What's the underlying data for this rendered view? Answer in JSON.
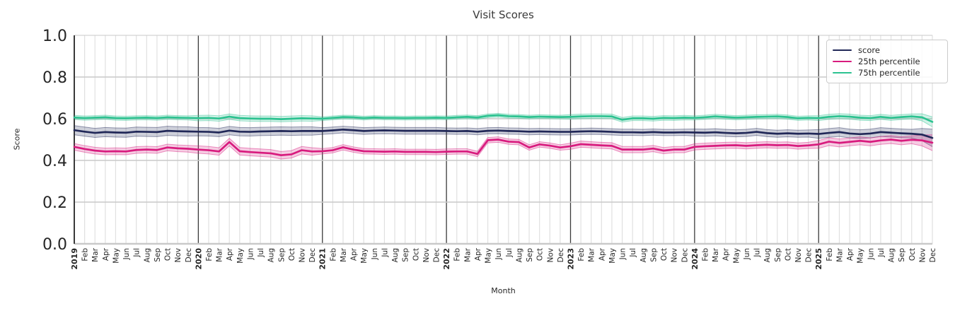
{
  "chart": {
    "title": "Visit Scores",
    "xlabel": "Month",
    "ylabel": "Score"
  },
  "chart_data": {
    "type": "line",
    "title": "Visit Scores",
    "xlabel": "Month",
    "ylabel": "Score",
    "ylim": [
      0.0,
      1.0
    ],
    "yticks": [
      0.0,
      0.2,
      0.4,
      0.6,
      0.8,
      1.0
    ],
    "grid": true,
    "legend_position": "upper right",
    "colors": {
      "grid_minor": "#e0e0e0",
      "grid_major_h": "#c9c9c9",
      "year_line": "#3b3b3b",
      "axis_spine": "#2a2a2a",
      "tick_text": "#262626"
    },
    "x_labels": [
      "2019",
      "Feb",
      "Mar",
      "Apr",
      "May",
      "Jun",
      "Jul",
      "Aug",
      "Sep",
      "Oct",
      "Nov",
      "Dec",
      "2020",
      "Feb",
      "Mar",
      "Apr",
      "May",
      "Jun",
      "Jul",
      "Aug",
      "Sep",
      "Oct",
      "Nov",
      "Dec",
      "2021",
      "Feb",
      "Mar",
      "Apr",
      "May",
      "Jun",
      "Jul",
      "Aug",
      "Sep",
      "Oct",
      "Nov",
      "Dec",
      "2022",
      "Feb",
      "Mar",
      "Apr",
      "May",
      "Jun",
      "Jul",
      "Aug",
      "Sep",
      "Oct",
      "Nov",
      "Dec",
      "2023",
      "Feb",
      "Mar",
      "Apr",
      "May",
      "Jun",
      "Jul",
      "Aug",
      "Sep",
      "Oct",
      "Nov",
      "Dec",
      "2024",
      "Feb",
      "Mar",
      "Apr",
      "May",
      "Jun",
      "Jul",
      "Aug",
      "Sep",
      "Oct",
      "Nov",
      "Dec",
      "2025",
      "Feb",
      "Mar",
      "Apr",
      "May",
      "Jun",
      "Jul",
      "Aug",
      "Sep",
      "Oct",
      "Nov",
      "Dec"
    ],
    "series": [
      {
        "key": "score",
        "name": "score",
        "color": "#212858",
        "band_by_year": [
          0.022,
          0.02,
          0.016,
          0.015,
          0.015,
          0.017,
          0.021
        ],
        "values": [
          0.545,
          0.538,
          0.532,
          0.536,
          0.534,
          0.533,
          0.538,
          0.537,
          0.536,
          0.542,
          0.54,
          0.539,
          0.538,
          0.537,
          0.534,
          0.543,
          0.538,
          0.537,
          0.539,
          0.54,
          0.541,
          0.54,
          0.541,
          0.541,
          0.541,
          0.544,
          0.548,
          0.545,
          0.541,
          0.543,
          0.544,
          0.543,
          0.542,
          0.542,
          0.542,
          0.542,
          0.541,
          0.54,
          0.541,
          0.538,
          0.542,
          0.543,
          0.541,
          0.54,
          0.538,
          0.539,
          0.538,
          0.537,
          0.537,
          0.539,
          0.54,
          0.539,
          0.537,
          0.535,
          0.535,
          0.534,
          0.536,
          0.534,
          0.534,
          0.535,
          0.534,
          0.533,
          0.535,
          0.532,
          0.53,
          0.532,
          0.537,
          0.531,
          0.528,
          0.53,
          0.528,
          0.529,
          0.527,
          0.532,
          0.536,
          0.529,
          0.526,
          0.529,
          0.536,
          0.533,
          0.53,
          0.528,
          0.524,
          0.508
        ]
      },
      {
        "key": "p25",
        "name": "25th percentile",
        "color": "#d81b7e",
        "band_by_year": [
          0.016,
          0.018,
          0.013,
          0.013,
          0.015,
          0.015,
          0.019
        ],
        "values": [
          0.465,
          0.455,
          0.447,
          0.443,
          0.444,
          0.443,
          0.45,
          0.452,
          0.45,
          0.462,
          0.458,
          0.456,
          0.452,
          0.449,
          0.443,
          0.488,
          0.444,
          0.44,
          0.437,
          0.434,
          0.425,
          0.429,
          0.449,
          0.443,
          0.444,
          0.449,
          0.463,
          0.452,
          0.444,
          0.443,
          0.442,
          0.443,
          0.441,
          0.441,
          0.441,
          0.44,
          0.442,
          0.443,
          0.443,
          0.431,
          0.497,
          0.5,
          0.49,
          0.488,
          0.462,
          0.477,
          0.471,
          0.462,
          0.468,
          0.478,
          0.475,
          0.472,
          0.47,
          0.452,
          0.452,
          0.452,
          0.457,
          0.447,
          0.452,
          0.452,
          0.465,
          0.468,
          0.47,
          0.472,
          0.473,
          0.47,
          0.473,
          0.475,
          0.473,
          0.474,
          0.469,
          0.472,
          0.477,
          0.49,
          0.484,
          0.489,
          0.494,
          0.489,
          0.496,
          0.5,
          0.494,
          0.499,
          0.496,
          0.485
        ]
      },
      {
        "key": "p75",
        "name": "75th percentile",
        "color": "#2cc290",
        "band_by_year": [
          0.01,
          0.013,
          0.009,
          0.009,
          0.011,
          0.01,
          0.012
        ],
        "values": [
          0.606,
          0.603,
          0.605,
          0.607,
          0.603,
          0.602,
          0.604,
          0.605,
          0.603,
          0.607,
          0.605,
          0.604,
          0.603,
          0.604,
          0.601,
          0.61,
          0.603,
          0.601,
          0.6,
          0.6,
          0.598,
          0.6,
          0.602,
          0.601,
          0.6,
          0.604,
          0.608,
          0.607,
          0.603,
          0.606,
          0.604,
          0.604,
          0.603,
          0.604,
          0.604,
          0.605,
          0.604,
          0.607,
          0.609,
          0.606,
          0.614,
          0.617,
          0.612,
          0.611,
          0.608,
          0.61,
          0.609,
          0.608,
          0.609,
          0.611,
          0.612,
          0.612,
          0.611,
          0.595,
          0.602,
          0.602,
          0.6,
          0.604,
          0.603,
          0.605,
          0.604,
          0.607,
          0.611,
          0.608,
          0.605,
          0.607,
          0.609,
          0.61,
          0.611,
          0.608,
          0.602,
          0.604,
          0.603,
          0.609,
          0.612,
          0.61,
          0.605,
          0.603,
          0.609,
          0.604,
          0.608,
          0.611,
          0.607,
          0.585
        ]
      }
    ]
  }
}
